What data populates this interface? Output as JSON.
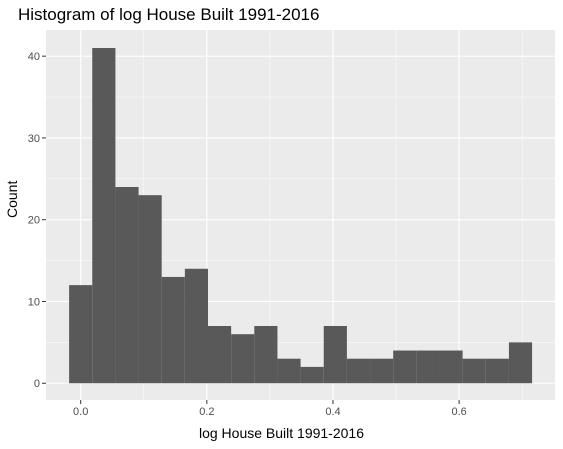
{
  "chart_data": {
    "type": "bar",
    "title": "Histogram of log House Built 1991-2016",
    "xlabel": "log House Built 1991-2016",
    "ylabel": "Count",
    "bin_width": 0.0367,
    "bins": [
      {
        "x": 0.0,
        "count": 12
      },
      {
        "x": 0.0367,
        "count": 41
      },
      {
        "x": 0.0734,
        "count": 24
      },
      {
        "x": 0.1101,
        "count": 23
      },
      {
        "x": 0.1468,
        "count": 13
      },
      {
        "x": 0.1835,
        "count": 14
      },
      {
        "x": 0.2202,
        "count": 7
      },
      {
        "x": 0.2569,
        "count": 6
      },
      {
        "x": 0.2936,
        "count": 7
      },
      {
        "x": 0.3303,
        "count": 3
      },
      {
        "x": 0.367,
        "count": 2
      },
      {
        "x": 0.4037,
        "count": 7
      },
      {
        "x": 0.4404,
        "count": 3
      },
      {
        "x": 0.4771,
        "count": 3
      },
      {
        "x": 0.5138,
        "count": 4
      },
      {
        "x": 0.5505,
        "count": 4
      },
      {
        "x": 0.5872,
        "count": 4
      },
      {
        "x": 0.6239,
        "count": 3
      },
      {
        "x": 0.6606,
        "count": 3
      },
      {
        "x": 0.6973,
        "count": 5
      }
    ],
    "xlim": [
      -0.055,
      0.752
    ],
    "ylim": [
      -2.05,
      43.2
    ],
    "x_ticks": [
      {
        "value": 0.0,
        "label": "0.0"
      },
      {
        "value": 0.2,
        "label": "0.2"
      },
      {
        "value": 0.4,
        "label": "0.4"
      },
      {
        "value": 0.6,
        "label": "0.6"
      }
    ],
    "y_ticks": [
      {
        "value": 0,
        "label": "0"
      },
      {
        "value": 10,
        "label": "10"
      },
      {
        "value": 20,
        "label": "20"
      },
      {
        "value": 30,
        "label": "30"
      },
      {
        "value": 40,
        "label": "40"
      }
    ],
    "grid": true,
    "colors": {
      "panel": "#EBEBEB",
      "grid": "#FFFFFF",
      "bar": "#595959",
      "tick_text": "#4D4D4D"
    }
  }
}
